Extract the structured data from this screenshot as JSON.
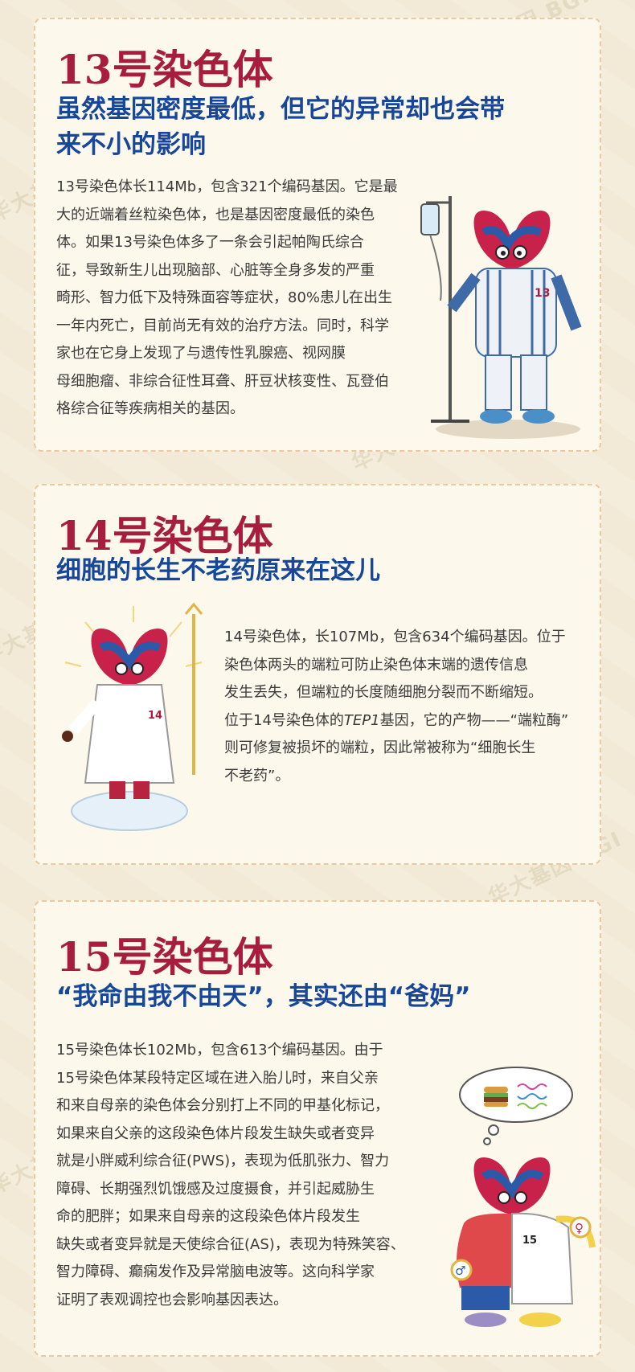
{
  "watermark": {
    "cn": "华大基因",
    "en": "BGI"
  },
  "sections": [
    {
      "title": "13号染色体",
      "subtitle_line1": "虽然基因密度最低，但它的异常却也会带",
      "subtitle_line2": "来不小的影响",
      "body": [
        "13号染色体长114Mb，包含321个编码基因。它是最",
        "大的近端着丝粒染色体，也是基因密度最低的染色",
        "体。如果13号染色体多了一条会引起帕陶氏综合",
        "征，导致新生儿出现脑部、心脏等全身多发的严重",
        "畸形、智力低下及特殊面容等症状，80%患儿在出生",
        "一年内死亡，目前尚无有效的治疗方法。同时，科学",
        "家也在它身上发现了与遗传性乳腺癌、视网膜",
        "母细胞瘤、非综合征性耳聋、肝豆状核变性、瓦登伯",
        "格综合征等疾病相关的基因。"
      ],
      "badge": "13",
      "colors": {
        "title": "#a81d3e",
        "subtitle": "#16479a"
      }
    },
    {
      "title": "14号染色体",
      "subtitle_line1": "细胞的长生不老药原来在这儿",
      "body": [
        "14号染色体，长107Mb，包含634个编码基因。位于",
        "染色体两头的端粒可防止染色体末端的遗传信息",
        "发生丢失，但端粒的长度随细胞分裂而不断缩短。",
        "位于14号染色体的",
        "则可修复被损坏的端粒，因此常被称为“细胞长生",
        "不老药”。"
      ],
      "gene": "TEP1",
      "body_line4_tail": "基因，它的产物——“端粒酶”",
      "badge": "14"
    },
    {
      "title": "15号染色体",
      "subtitle_line1": "“我命由我不由天”，其实还由“爸妈”",
      "body": [
        "15号染色体长102Mb，包含613个编码基因。由于",
        "15号染色体某段特定区域在进入胎儿时，来自父亲",
        "和来自母亲的染色体会分别打上不同的甲基化标记，",
        "如果来自父亲的这段染色体片段发生缺失或者变异",
        "就是小胖威利综合征(PWS)，表现为低肌张力、智力",
        "障碍、长期强烈饥饿感及过度摄食，并引起威胁生",
        "命的肥胖；如果来自母亲的这段染色体片段发生",
        "缺失或者变异就是天使综合征(AS)，表现为特殊笑容、",
        "智力障碍、癫痫发作及异常脑电波等。这向科学家",
        "证明了表观调控也会影响基因表达。"
      ],
      "badge": "15"
    }
  ]
}
